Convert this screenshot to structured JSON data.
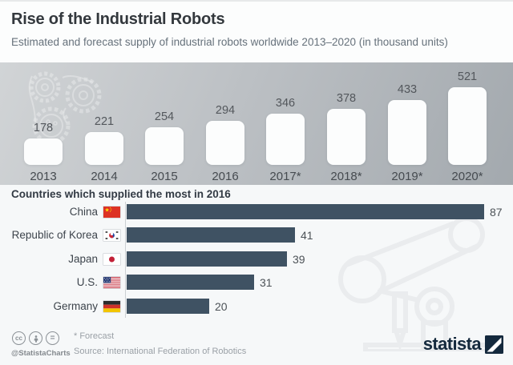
{
  "header": {
    "title": "Rise of the Industrial Robots",
    "subtitle": "Estimated and forecast supply of industrial robots worldwide 2013–2020 (in thousand units)"
  },
  "chart_data": [
    {
      "type": "bar",
      "title": "Estimated and forecast supply of industrial robots worldwide",
      "unit": "thousand units",
      "categories": [
        "2013",
        "2014",
        "2015",
        "2016",
        "2017*",
        "2018*",
        "2019*",
        "2020*"
      ],
      "values": [
        178,
        221,
        254,
        294,
        346,
        378,
        433,
        521
      ],
      "ylim": [
        0,
        521
      ],
      "grid": false,
      "bar_color": "#fcfdfd",
      "panel_gradient": [
        "#d1d4d6",
        "#a3a9ae"
      ]
    },
    {
      "type": "bar",
      "orientation": "horizontal",
      "title": "Countries which supplied the most in 2016",
      "unit": "thousand units",
      "categories": [
        "China",
        "Republic of Korea",
        "Japan",
        "U.S.",
        "Germany"
      ],
      "values": [
        87,
        41,
        39,
        31,
        20
      ],
      "flags": [
        "flag-china",
        "flag-south-korea",
        "flag-japan",
        "flag-usa",
        "flag-germany"
      ],
      "xlim": [
        0,
        90
      ],
      "grid": false,
      "bar_color": "#3f5263"
    }
  ],
  "footer": {
    "license_icons": [
      "cc-icon",
      "attribution-person-icon",
      "no-derivatives-icon"
    ],
    "handle": "@StatistaCharts",
    "forecast_note": "* Forecast",
    "source": "Source: International Federation of Robotics",
    "brand": "statista"
  },
  "colors": {
    "accent_bar": "#3f5263",
    "brand_navy": "#14293d",
    "page_bg": "#f6f8f9",
    "panel_light": "#d1d4d6",
    "panel_dark": "#a3a9ae"
  }
}
